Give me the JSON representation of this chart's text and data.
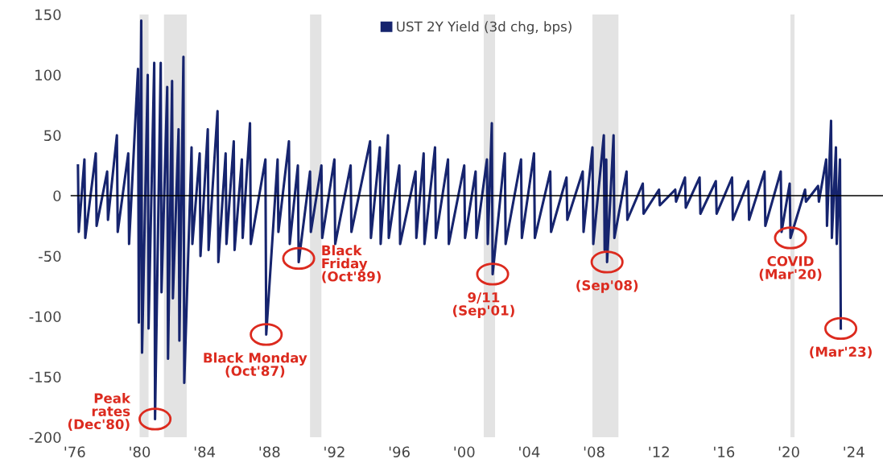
{
  "chart_data": {
    "type": "line",
    "legend": "top",
    "xlim": [
      1975.75,
      2025.8
    ],
    "xticks": [
      {
        "value": 1976,
        "label": "'76"
      },
      {
        "value": 1980,
        "label": "'80"
      },
      {
        "value": 1984,
        "label": "'84"
      },
      {
        "value": 1988,
        "label": "'88"
      },
      {
        "value": 1992,
        "label": "'92"
      },
      {
        "value": 1996,
        "label": "'96"
      },
      {
        "value": 2000,
        "label": "'00"
      },
      {
        "value": 2004,
        "label": "'04"
      },
      {
        "value": 2008,
        "label": "'08"
      },
      {
        "value": 2012,
        "label": "'12"
      },
      {
        "value": 2016,
        "label": "'16"
      },
      {
        "value": 2020,
        "label": "'20"
      },
      {
        "value": 2024,
        "label": "'24"
      }
    ],
    "ylim": [
      -200,
      150
    ],
    "yticks": [
      150,
      100,
      50,
      0,
      -50,
      -100,
      -150,
      -200
    ],
    "grid": false,
    "series": [
      {
        "name": "UST 2Y Yield (3d chg, bps)",
        "color": "#16246e",
        "x": [
          1976.2,
          1976.25,
          1976.6,
          1976.65,
          1977.3,
          1977.35,
          1978.0,
          1978.05,
          1978.6,
          1978.65,
          1979.3,
          1979.35,
          1979.9,
          1979.95,
          1980.1,
          1980.15,
          1980.5,
          1980.55,
          1980.9,
          1980.95,
          1981.3,
          1981.35,
          1981.7,
          1981.75,
          1982.0,
          1982.05,
          1982.4,
          1982.45,
          1982.7,
          1982.75,
          1983.2,
          1983.25,
          1983.7,
          1983.75,
          1984.2,
          1984.25,
          1984.8,
          1984.85,
          1985.3,
          1985.35,
          1985.8,
          1985.85,
          1986.3,
          1986.35,
          1986.8,
          1986.85,
          1987.75,
          1987.8,
          1988.5,
          1988.55,
          1989.2,
          1989.25,
          1989.75,
          1989.8,
          1990.5,
          1990.55,
          1991.2,
          1991.25,
          1992.0,
          1992.05,
          1993.0,
          1993.05,
          1994.2,
          1994.25,
          1994.8,
          1994.85,
          1995.3,
          1995.35,
          1996.0,
          1996.05,
          1997.0,
          1997.05,
          1997.5,
          1997.55,
          1998.2,
          1998.25,
          1999.0,
          1999.05,
          2000.0,
          2000.05,
          2000.7,
          2000.75,
          2001.4,
          2001.45,
          2001.7,
          2001.75,
          2002.5,
          2002.55,
          2003.5,
          2003.55,
          2004.3,
          2004.35,
          2005.3,
          2005.35,
          2006.3,
          2006.35,
          2007.3,
          2007.35,
          2007.9,
          2007.95,
          2008.6,
          2008.65,
          2008.75,
          2008.8,
          2009.2,
          2009.25,
          2010.0,
          2010.05,
          2011.0,
          2011.05,
          2012.0,
          2012.05,
          2013.0,
          2013.05,
          2013.6,
          2013.65,
          2014.5,
          2014.55,
          2015.5,
          2015.55,
          2016.5,
          2016.55,
          2017.5,
          2017.55,
          2018.5,
          2018.55,
          2019.5,
          2019.55,
          2020.05,
          2020.1,
          2021.0,
          2021.05,
          2021.8,
          2021.85,
          2022.3,
          2022.35,
          2022.6,
          2022.65,
          2022.9,
          2022.95,
          2023.15,
          2023.2
        ],
        "values": [
          25,
          -30,
          30,
          -35,
          35,
          -25,
          20,
          -20,
          50,
          -30,
          35,
          -40,
          105,
          -105,
          145,
          -130,
          100,
          -110,
          110,
          -185,
          110,
          -80,
          90,
          -135,
          95,
          -85,
          55,
          -120,
          115,
          -155,
          40,
          -40,
          35,
          -50,
          55,
          -45,
          70,
          -55,
          35,
          -40,
          45,
          -45,
          30,
          -35,
          60,
          -40,
          30,
          -115,
          30,
          -30,
          45,
          -40,
          25,
          -55,
          20,
          -30,
          25,
          -35,
          30,
          -40,
          25,
          -30,
          45,
          -35,
          40,
          -40,
          50,
          -35,
          25,
          -40,
          20,
          -35,
          35,
          -40,
          40,
          -35,
          30,
          -40,
          25,
          -35,
          20,
          -35,
          30,
          -40,
          60,
          -65,
          35,
          -40,
          30,
          -35,
          35,
          -35,
          20,
          -30,
          15,
          -20,
          20,
          -30,
          40,
          -40,
          50,
          -45,
          30,
          -55,
          50,
          -35,
          20,
          -20,
          10,
          -15,
          5,
          -8,
          5,
          -5,
          15,
          -10,
          15,
          -15,
          12,
          -15,
          15,
          -20,
          12,
          -20,
          20,
          -25,
          20,
          -30,
          10,
          -35,
          5,
          -5,
          8,
          -5,
          30,
          -25,
          62,
          -35,
          40,
          -40,
          30,
          -110
        ]
      }
    ],
    "ref_lines": [
      {
        "axis": "y",
        "value": 0,
        "color": "#000000"
      }
    ],
    "bands": [
      {
        "axis": "x",
        "from": 1980.0,
        "to": 1980.55,
        "color": "#e3e3e3"
      },
      {
        "axis": "x",
        "from": 1981.5,
        "to": 1982.9,
        "color": "#e3e3e3"
      },
      {
        "axis": "x",
        "from": 1990.5,
        "to": 1991.2,
        "color": "#e3e3e3"
      },
      {
        "axis": "x",
        "from": 2001.2,
        "to": 2001.9,
        "color": "#e3e3e3"
      },
      {
        "axis": "x",
        "from": 2007.9,
        "to": 2009.5,
        "color": "#e3e3e3"
      },
      {
        "axis": "x",
        "from": 2020.1,
        "to": 2020.35,
        "color": "#e3e3e3"
      }
    ],
    "annotations": [
      {
        "text": "Peak\nrates\n(Dec'80)",
        "x": 1980.95,
        "y": -185
      },
      {
        "text": "Black Monday\n(Oct'87)",
        "x": 1987.8,
        "y": -115
      },
      {
        "text": "Black\nFriday\n(Oct'89)",
        "x": 1989.8,
        "y": -52
      },
      {
        "text": "9/11\n(Sep'01)",
        "x": 2001.75,
        "y": -65
      },
      {
        "text": "(Sep'08)",
        "x": 2008.8,
        "y": -55
      },
      {
        "text": "COVID\n(Mar'20)",
        "x": 2020.1,
        "y": -35
      },
      {
        "text": "(Mar'23)",
        "x": 2023.2,
        "y": -110
      }
    ]
  }
}
